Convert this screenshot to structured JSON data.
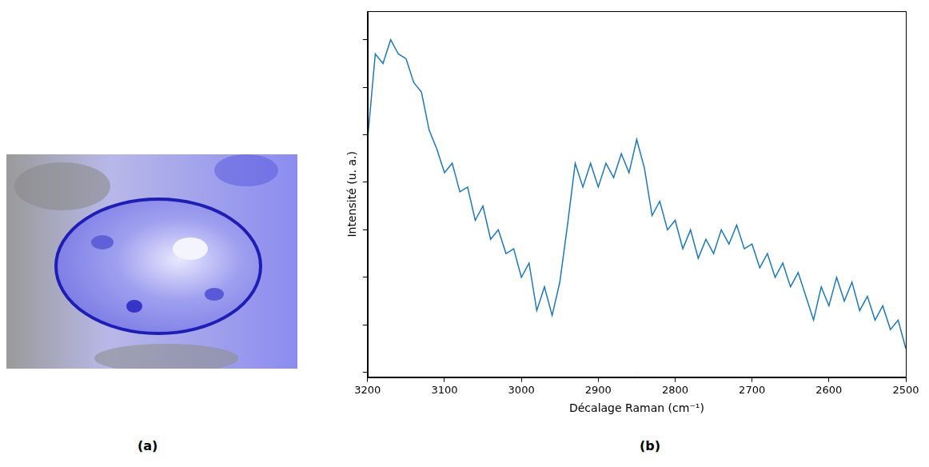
{
  "panel_labels": [
    "(a)",
    "(b)"
  ],
  "chart_data": {
    "type": "line",
    "x_label": "Décalage Raman (cm⁻¹)",
    "y_label": "Intensité (u. a.)",
    "x": [
      3200,
      3190,
      3180,
      3170,
      3160,
      3150,
      3140,
      3130,
      3120,
      3110,
      3100,
      3090,
      3080,
      3070,
      3060,
      3050,
      3040,
      3030,
      3020,
      3010,
      3000,
      2990,
      2980,
      2970,
      2960,
      2950,
      2940,
      2930,
      2920,
      2910,
      2900,
      2890,
      2880,
      2870,
      2860,
      2850,
      2840,
      2830,
      2820,
      2810,
      2800,
      2790,
      2780,
      2770,
      2760,
      2750,
      2740,
      2730,
      2720,
      2710,
      2700,
      2690,
      2680,
      2670,
      2660,
      2650,
      2640,
      2630,
      2620,
      2610,
      2600,
      2590,
      2580,
      2570,
      2560,
      2550,
      2540,
      2530,
      2520,
      2510,
      2500
    ],
    "values": [
      4.9,
      6.7,
      6.5,
      7.0,
      6.7,
      6.6,
      6.1,
      5.9,
      5.1,
      4.7,
      4.2,
      4.4,
      3.8,
      3.9,
      3.2,
      3.5,
      2.8,
      3.0,
      2.5,
      2.6,
      2.0,
      2.3,
      1.3,
      1.8,
      1.2,
      1.9,
      3.1,
      4.4,
      3.9,
      4.4,
      3.9,
      4.4,
      4.1,
      4.6,
      4.2,
      4.9,
      4.3,
      3.3,
      3.6,
      3.0,
      3.2,
      2.6,
      3.0,
      2.4,
      2.8,
      2.5,
      3.0,
      2.7,
      3.1,
      2.6,
      2.7,
      2.2,
      2.5,
      2.0,
      2.3,
      1.8,
      2.1,
      1.6,
      1.1,
      1.8,
      1.4,
      2.0,
      1.5,
      1.9,
      1.3,
      1.6,
      1.1,
      1.4,
      0.9,
      1.1,
      0.5
    ],
    "color": "#1f77b4",
    "xlim": [
      3200,
      2500
    ],
    "xticks": [
      3200,
      3100,
      3000,
      2900,
      2800,
      2700,
      2600,
      2500
    ],
    "ylim": [
      -0.1,
      7.6
    ],
    "yticks": [
      0,
      1,
      2,
      3,
      4,
      5,
      6,
      7
    ],
    "grid": false,
    "tick_labels": "x"
  }
}
